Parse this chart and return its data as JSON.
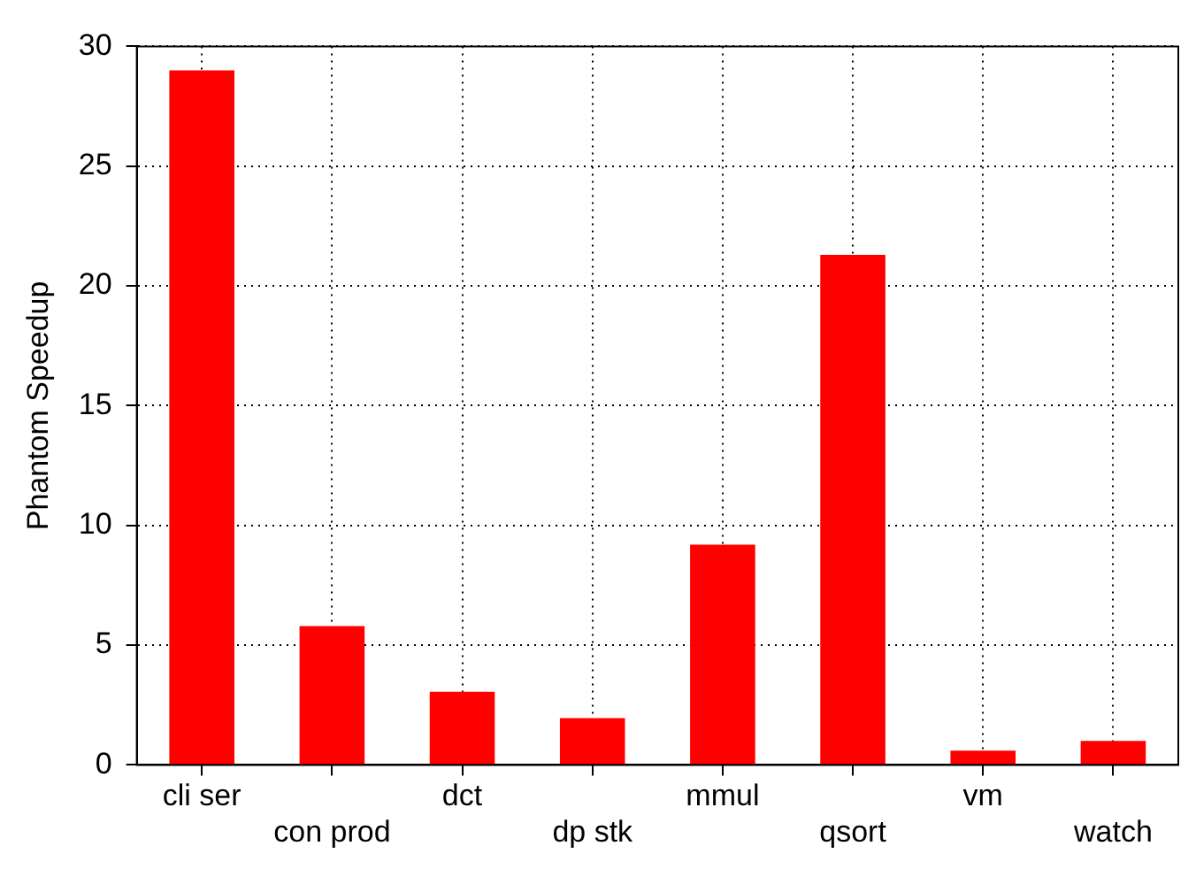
{
  "chart_data": {
    "type": "bar",
    "ylabel": "Phantom Speedup",
    "categories": [
      "cli ser",
      "con prod",
      "dct",
      "dp stk",
      "mmul",
      "qsort",
      "vm",
      "watch"
    ],
    "values": [
      29.0,
      5.8,
      3.05,
      1.95,
      9.2,
      21.3,
      0.6,
      1.0
    ],
    "color": "#ff0000",
    "ylim": [
      0,
      30
    ],
    "yticks": [
      0,
      5,
      10,
      15,
      20,
      25,
      30
    ],
    "grid": true,
    "legend": false
  }
}
